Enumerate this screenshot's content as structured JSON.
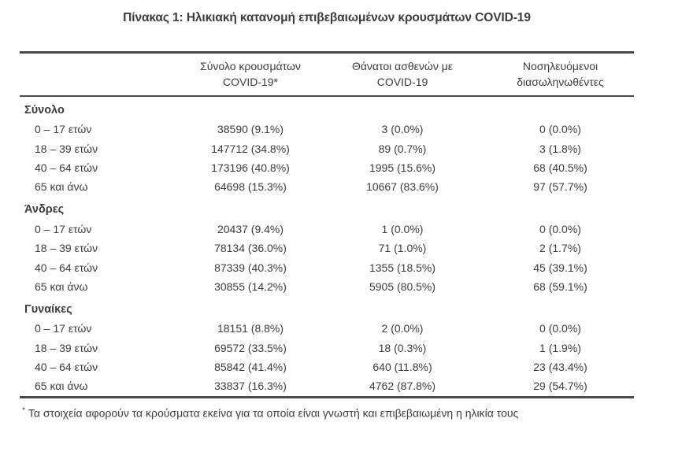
{
  "title": "Πίνακας 1: Ηλικιακή κατανομή επιβεβαιωμένων κρουσμάτων COVID-19",
  "table": {
    "columns": [
      {
        "line1": "Σύνολο κρουσμάτων",
        "line2": "COVID-19*"
      },
      {
        "line1": "Θάνατοι ασθενών με",
        "line2": "COVID-19"
      },
      {
        "line1": "Νοσηλευόμενοι",
        "line2": "διασωληνωθέντες"
      }
    ],
    "sections": [
      {
        "label": "Σύνολο",
        "rows": [
          {
            "age": "0 – 17 ετών",
            "cases": "38590 (9.1%)",
            "deaths": "3 (0.0%)",
            "intubated": "0 (0.0%)"
          },
          {
            "age": "18 – 39 ετών",
            "cases": "147712 (34.8%)",
            "deaths": "89 (0.7%)",
            "intubated": "3 (1.8%)"
          },
          {
            "age": "40 – 64 ετών",
            "cases": "173196 (40.8%)",
            "deaths": "1995 (15.6%)",
            "intubated": "68 (40.5%)"
          },
          {
            "age": "65 και άνω",
            "cases": "64698 (15.3%)",
            "deaths": "10667 (83.6%)",
            "intubated": "97 (57.7%)"
          }
        ]
      },
      {
        "label": "Άνδρες",
        "rows": [
          {
            "age": "0 – 17 ετών",
            "cases": "20437 (9.4%)",
            "deaths": "1 (0.0%)",
            "intubated": "0 (0.0%)"
          },
          {
            "age": "18 – 39 ετών",
            "cases": "78134 (36.0%)",
            "deaths": "71 (1.0%)",
            "intubated": "2 (1.7%)"
          },
          {
            "age": "40 – 64 ετών",
            "cases": "87339 (40.3%)",
            "deaths": "1355 (18.5%)",
            "intubated": "45 (39.1%)"
          },
          {
            "age": "65 και άνω",
            "cases": "30855 (14.2%)",
            "deaths": "5905 (80.5%)",
            "intubated": "68 (59.1%)"
          }
        ]
      },
      {
        "label": "Γυναίκες",
        "rows": [
          {
            "age": "0 – 17 ετών",
            "cases": "18151 (8.8%)",
            "deaths": "2 (0.0%)",
            "intubated": "0 (0.0%)"
          },
          {
            "age": "18 – 39 ετών",
            "cases": "69572 (33.5%)",
            "deaths": "18 (0.3%)",
            "intubated": "1 (1.9%)"
          },
          {
            "age": "40 – 64 ετών",
            "cases": "85842 (41.4%)",
            "deaths": "640 (11.8%)",
            "intubated": "23 (43.4%)"
          },
          {
            "age": "65 και άνω",
            "cases": "33837 (16.3%)",
            "deaths": "4762 (87.8%)",
            "intubated": "29 (54.7%)"
          }
        ]
      }
    ]
  },
  "footnote": {
    "marker": "*",
    "text": "Τα στοιχεία αφορούν τα κρούσματα εκείνα για τα οποία είναι γνωστή και επιβεβαιωμένη η ηλικία τους"
  },
  "colors": {
    "text": "#3c3c40",
    "rule": "#4a4a4a"
  }
}
